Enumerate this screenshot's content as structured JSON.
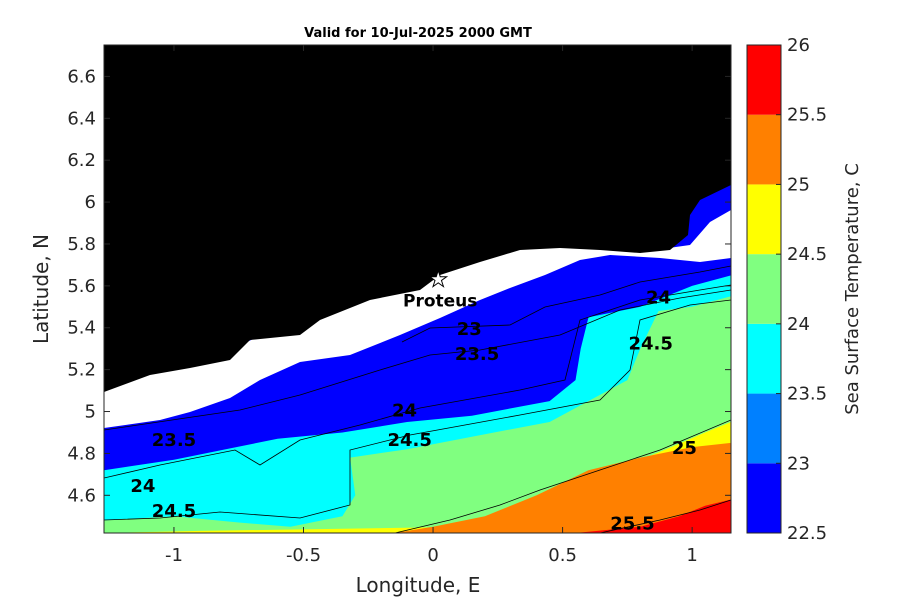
{
  "chart_data": {
    "type": "contourf",
    "title": "Valid for 10-Jul-2025 2000 GMT",
    "xlabel": "Longitude, E",
    "ylabel": "Latitude, N",
    "xlim": [
      -1.27,
      1.15
    ],
    "ylim": [
      4.42,
      6.75
    ],
    "xticks": [
      -1,
      -0.5,
      0,
      0.5,
      1
    ],
    "xtick_labels": [
      "-1",
      "-0.5",
      "0",
      "0.5",
      "1"
    ],
    "yticks": [
      4.6,
      4.8,
      5.0,
      5.2,
      5.4,
      5.6,
      5.8,
      6.0,
      6.2,
      6.4,
      6.6
    ],
    "ytick_labels": [
      "4.6",
      "4.8",
      "5",
      "5.2",
      "5.4",
      "5.6",
      "5.8",
      "6",
      "6.2",
      "6.4",
      "6.6"
    ],
    "colorbar": {
      "label": "Sea Surface Temperature, C",
      "range": [
        22.5,
        26
      ],
      "ticks": [
        "22.5",
        "23",
        "23.5",
        "24",
        "24.5",
        "25",
        "25.5",
        "26"
      ],
      "levels": [
        {
          "from": 22.5,
          "to": 23.0,
          "color": "#0000ff"
        },
        {
          "from": 23.0,
          "to": 23.5,
          "color": "#0080ff"
        },
        {
          "from": 23.5,
          "to": 24.0,
          "color": "#00ffff"
        },
        {
          "from": 24.0,
          "to": 24.5,
          "color": "#80ff80"
        },
        {
          "from": 24.5,
          "to": 25.0,
          "color": "#ffff00"
        },
        {
          "from": 25.0,
          "to": 25.5,
          "color": "#ff8000"
        },
        {
          "from": 25.5,
          "to": 26.0,
          "color": "#ff0000"
        }
      ]
    },
    "land_color": "#000000",
    "nodata_color": "#ffffff",
    "station": {
      "name": "Proteus",
      "lon": 0.02,
      "lat": 5.63,
      "marker": "star"
    },
    "bands": [
      {
        "level": "23.5-24",
        "color": "#00ffff",
        "lower": [
          [
            -1.27,
            4.72
          ],
          [
            -1.0,
            4.77
          ],
          [
            -0.8,
            4.82
          ],
          [
            -0.6,
            4.87
          ],
          [
            -0.35,
            4.9
          ],
          [
            -0.1,
            4.95
          ],
          [
            0.15,
            4.98
          ],
          [
            0.45,
            5.05
          ],
          [
            0.55,
            5.15
          ],
          [
            0.57,
            5.3
          ],
          [
            0.6,
            5.45
          ],
          [
            0.8,
            5.5
          ],
          [
            1.0,
            5.6
          ],
          [
            1.15,
            5.65
          ]
        ]
      },
      {
        "level": "24-24.5",
        "color": "#80ff80",
        "lower": [
          [
            -1.27,
            4.48
          ],
          [
            -1.0,
            4.5
          ],
          [
            -0.75,
            4.47
          ],
          [
            -0.55,
            4.45
          ],
          [
            -0.35,
            4.5
          ],
          [
            -0.3,
            4.6
          ],
          [
            -0.32,
            4.78
          ],
          [
            -0.1,
            4.82
          ],
          [
            0.15,
            4.88
          ],
          [
            0.45,
            4.95
          ],
          [
            0.75,
            5.15
          ],
          [
            0.8,
            5.3
          ],
          [
            0.87,
            5.48
          ],
          [
            1.0,
            5.5
          ],
          [
            1.15,
            5.55
          ]
        ]
      },
      {
        "level": "24.5-25",
        "color": "#ffff00",
        "lower": [
          [
            -1.27,
            4.42
          ],
          [
            -0.9,
            4.43
          ],
          [
            0.15,
            4.45
          ],
          [
            0.45,
            4.55
          ],
          [
            0.7,
            4.72
          ],
          [
            0.9,
            4.82
          ],
          [
            1.05,
            4.9
          ],
          [
            1.15,
            4.95
          ]
        ]
      },
      {
        "level": "25-25.5",
        "color": "#ff8000",
        "lower": [
          [
            -0.15,
            4.42
          ],
          [
            0.0,
            4.45
          ],
          [
            0.2,
            4.5
          ],
          [
            0.4,
            4.6
          ],
          [
            0.6,
            4.72
          ],
          [
            0.8,
            4.78
          ],
          [
            1.0,
            4.83
          ],
          [
            1.15,
            4.85
          ]
        ]
      },
      {
        "level": "25.5-26",
        "color": "#ff0000",
        "lower": [
          [
            0.55,
            4.42
          ],
          [
            0.8,
            4.45
          ],
          [
            0.95,
            4.5
          ],
          [
            1.05,
            4.55
          ],
          [
            1.15,
            4.58
          ]
        ]
      }
    ],
    "contour_labels": [
      {
        "text": "23",
        "lon": 0.14,
        "lat": 5.39
      },
      {
        "text": "23.5",
        "lon": 0.17,
        "lat": 5.27
      },
      {
        "text": "24",
        "lon": 0.87,
        "lat": 5.54
      },
      {
        "text": "24.5",
        "lon": 0.84,
        "lat": 5.32
      },
      {
        "text": "24",
        "lon": -0.11,
        "lat": 5.0
      },
      {
        "text": "24.5",
        "lon": -0.09,
        "lat": 4.86
      },
      {
        "text": "23.5",
        "lon": -1.0,
        "lat": 4.86
      },
      {
        "text": "24",
        "lon": -1.12,
        "lat": 4.64
      },
      {
        "text": "24.5",
        "lon": -1.0,
        "lat": 4.52
      },
      {
        "text": "25",
        "lon": 0.97,
        "lat": 4.82
      },
      {
        "text": "25.5",
        "lon": 0.77,
        "lat": 4.46
      }
    ]
  }
}
